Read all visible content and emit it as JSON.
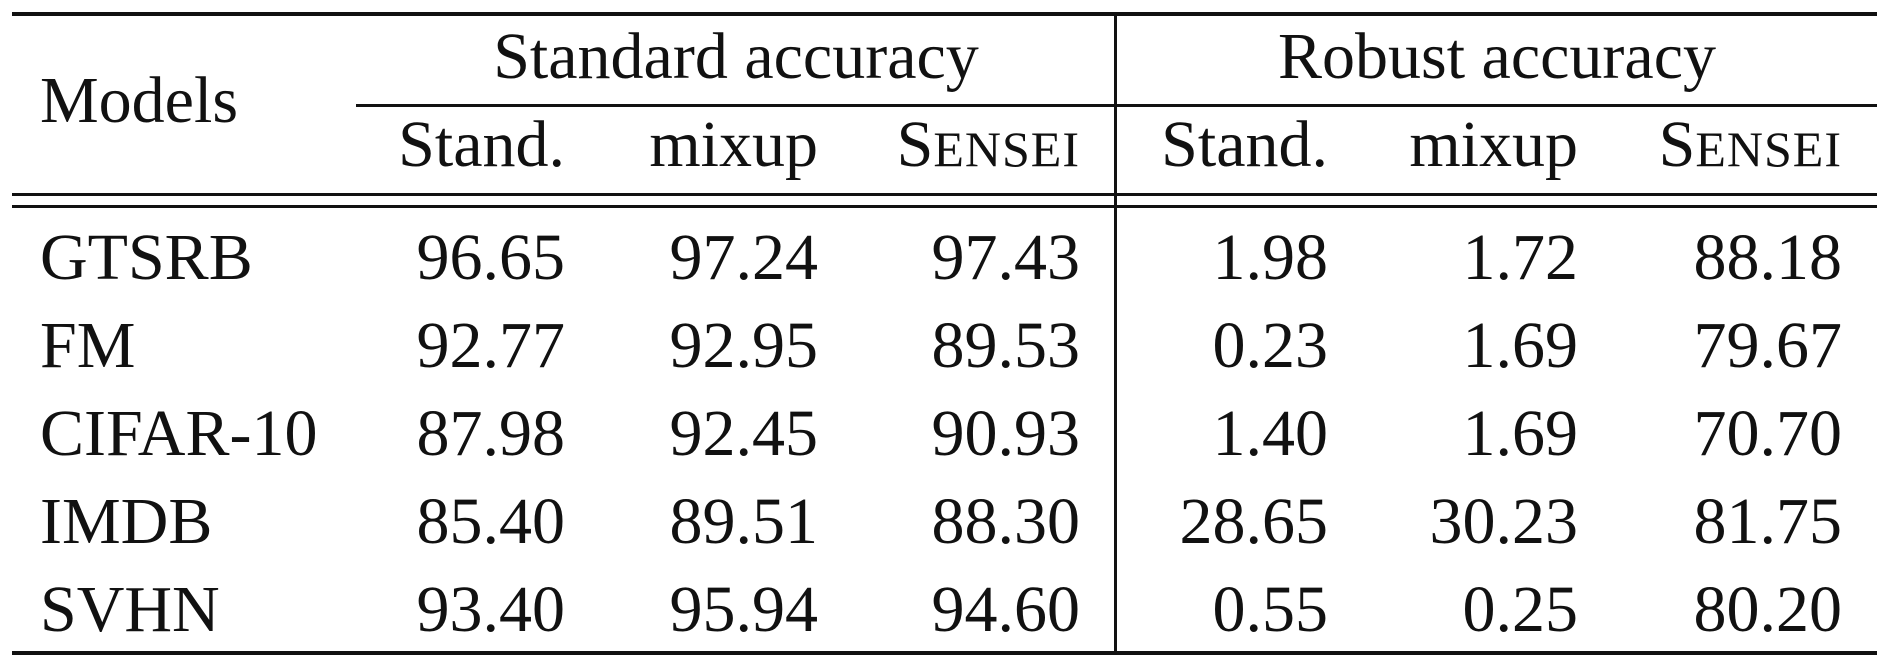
{
  "table": {
    "header": {
      "models_label": "Models",
      "group_standard": "Standard accuracy",
      "group_robust": "Robust accuracy",
      "sub_columns": [
        {
          "label": "Stand.",
          "smallcaps": false
        },
        {
          "label": "mixup",
          "smallcaps": false
        },
        {
          "label": "Sensei",
          "cap": "S",
          "small": "ENSEI",
          "smallcaps": true
        },
        {
          "label": "Stand.",
          "smallcaps": false
        },
        {
          "label": "mixup",
          "smallcaps": false
        },
        {
          "label": "Sensei",
          "cap": "S",
          "small": "ENSEI",
          "smallcaps": true
        }
      ]
    },
    "rows": [
      {
        "model": "GTSRB",
        "values": [
          "96.65",
          "97.24",
          "97.43",
          "1.98",
          "1.72",
          "88.18"
        ]
      },
      {
        "model": "FM",
        "values": [
          "92.77",
          "92.95",
          "89.53",
          "0.23",
          "1.69",
          "79.67"
        ]
      },
      {
        "model": "CIFAR-10",
        "values": [
          "87.98",
          "92.45",
          "90.93",
          "1.40",
          "1.69",
          "70.70"
        ]
      },
      {
        "model": "IMDB",
        "values": [
          "85.40",
          "89.51",
          "88.30",
          "28.65",
          "30.23",
          "81.75"
        ]
      },
      {
        "model": "SVHN",
        "values": [
          "93.40",
          "95.94",
          "94.60",
          "0.55",
          "0.25",
          "80.20"
        ]
      }
    ]
  }
}
